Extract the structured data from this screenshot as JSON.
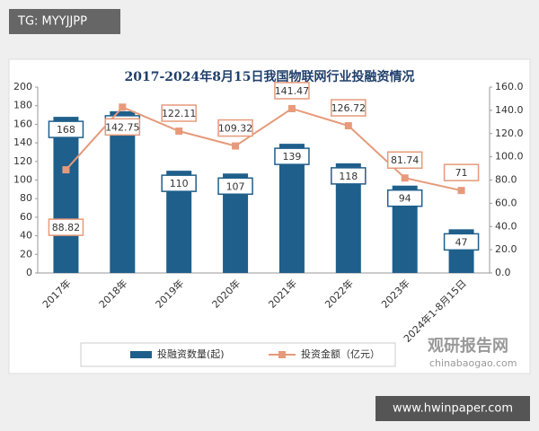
{
  "watermarks": {
    "tag": "TG: MYYJJPP",
    "site_cn": "观研报告网",
    "site_en": "chinabaogao.com",
    "footer": "www.hwinpaper.com"
  },
  "chart_data": {
    "type": "bar",
    "title": "2017-2024年8月15日我国物联网行业投融资情况",
    "categories": [
      "2017年",
      "2018年",
      "2019年",
      "2020年",
      "2021年",
      "2022年",
      "2023年",
      "2024年1-8月15日"
    ],
    "series": [
      {
        "name": "投融资数量(起)",
        "type": "bar",
        "color": "#1f5f8b",
        "values": [
          168,
          174,
          110,
          107,
          139,
          118,
          94,
          47
        ]
      },
      {
        "name": "投资金额（亿元）",
        "type": "line",
        "axis": "y2",
        "color": "#e69a7a",
        "values": [
          88.82,
          142.75,
          122.11,
          109.32,
          141.47,
          126.72,
          81.74,
          71
        ]
      }
    ],
    "ylim": [
      0,
      200
    ],
    "yticks": [
      0,
      20,
      40,
      60,
      80,
      100,
      120,
      140,
      160,
      180,
      200
    ],
    "y2lim": [
      0,
      160
    ],
    "y2ticks": [
      {
        "value": 0,
        "label": "0.0"
      },
      {
        "value": 20,
        "label": "20.0"
      },
      {
        "value": 40,
        "label": "40.0"
      },
      {
        "value": 60,
        "label": "60.0"
      },
      {
        "value": 80,
        "label": "80.0"
      },
      {
        "value": 100,
        "label": "100.0"
      },
      {
        "value": 120,
        "label": "120.0"
      },
      {
        "value": 140,
        "label": "140.0"
      },
      {
        "value": 160,
        "label": "160.0"
      }
    ],
    "legend": "bottom"
  }
}
